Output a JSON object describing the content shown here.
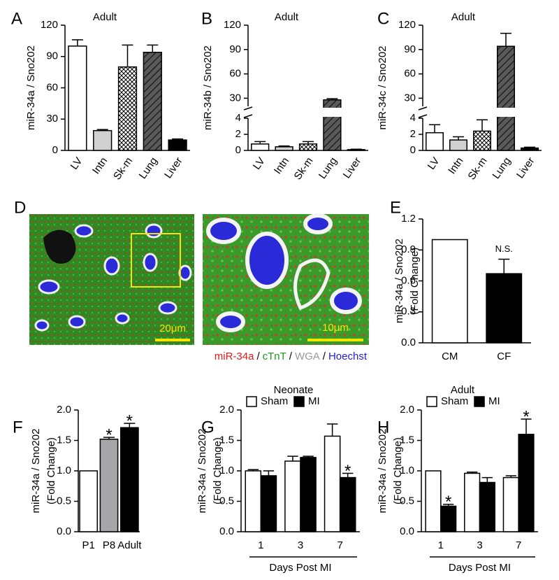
{
  "chart_data": [
    {
      "panel": "A",
      "type": "bar",
      "title": "Adult",
      "ylabel": "miR-34a / Sno202",
      "categories": [
        "LV",
        "Intn",
        "Sk-m",
        "Lung",
        "Liver"
      ],
      "values": [
        100,
        19,
        80,
        94,
        10
      ],
      "errors": [
        6,
        1,
        21,
        7,
        1
      ],
      "fills": [
        "white",
        "lightgray",
        "crosshatch",
        "diagonal",
        "black"
      ],
      "ylim": [
        0,
        120
      ],
      "yticks": [
        0,
        30,
        60,
        90,
        120
      ]
    },
    {
      "panel": "B",
      "type": "bar",
      "title": "Adult",
      "ylabel": "miR-34b / Sno202",
      "categories": [
        "LV",
        "Intn",
        "Sk-m",
        "Lung",
        "Liver"
      ],
      "values": [
        0.8,
        0.45,
        0.8,
        28,
        0.1
      ],
      "errors": [
        0.3,
        0.1,
        0.3,
        1.5,
        0.05
      ],
      "fills": [
        "white",
        "lightgray",
        "crosshatch",
        "diagonal",
        "black"
      ],
      "ylim": [
        0,
        120
      ],
      "axis_break": [
        4,
        20
      ],
      "yticks": [
        0,
        2,
        4,
        30,
        60,
        90,
        120
      ]
    },
    {
      "panel": "C",
      "type": "bar",
      "title": "Adult",
      "ylabel": "miR-34c / Sno202",
      "categories": [
        "LV",
        "Intn",
        "Sk-m",
        "Lung",
        "Liver"
      ],
      "values": [
        2.2,
        1.3,
        2.4,
        94,
        0.3
      ],
      "errors": [
        1.0,
        0.4,
        1.4,
        16,
        0.1
      ],
      "fills": [
        "white",
        "lightgray",
        "crosshatch",
        "diagonal",
        "black"
      ],
      "ylim": [
        0,
        120
      ],
      "axis_break": [
        4,
        20
      ],
      "yticks": [
        0,
        2,
        4,
        30,
        60,
        90,
        120
      ]
    },
    {
      "panel": "E",
      "type": "bar",
      "ylabel": [
        "miR-34a / Sno202",
        "(Fold Change)"
      ],
      "categories": [
        "CM",
        "CF"
      ],
      "values": [
        1.0,
        0.67
      ],
      "errors": [
        null,
        0.14
      ],
      "fills": [
        "white",
        "black"
      ],
      "annotations": [
        null,
        "N.S."
      ],
      "ylim": [
        0,
        1.2
      ],
      "yticks": [
        {
          "value": 0,
          "label": "0.0"
        },
        0.3,
        0.6,
        0.9,
        1.2
      ]
    },
    {
      "panel": "F",
      "type": "bar",
      "ylabel": [
        "miR-34a / Sno202",
        "(Fold Change)"
      ],
      "categories": [
        "P1",
        "P8",
        "Adult"
      ],
      "values": [
        1.0,
        1.52,
        1.71
      ],
      "errors": [
        null,
        0.03,
        0.07
      ],
      "fills": [
        "white",
        "gray",
        "black"
      ],
      "annotations": [
        null,
        "*",
        "*"
      ],
      "ylim": [
        0,
        2
      ],
      "yticks": [
        {
          "value": 0,
          "label": "0.0"
        },
        0.5,
        {
          "value": 1,
          "label": "1.0"
        },
        1.5,
        {
          "value": 2,
          "label": "2.0"
        }
      ]
    },
    {
      "panel": "G",
      "type": "bar",
      "title": "Neonate",
      "ylabel": [
        "miR-34a / Sno202",
        "(Fold Change)"
      ],
      "categories": [
        "1",
        "3",
        "7"
      ],
      "xlabel": "Days Post MI",
      "series": [
        {
          "name": "Sham",
          "color": "white",
          "values": [
            1.0,
            1.16,
            1.57
          ],
          "errors": [
            0.02,
            0.08,
            0.2
          ]
        },
        {
          "name": "MI",
          "color": "black",
          "values": [
            0.92,
            1.22,
            0.89
          ],
          "errors": [
            0.08,
            0.02,
            0.07
          ],
          "annotations": [
            null,
            null,
            "*"
          ]
        }
      ],
      "ylim": [
        0,
        2
      ],
      "yticks": [
        {
          "value": 0,
          "label": "0.0"
        },
        0.5,
        {
          "value": 1,
          "label": "1.0"
        },
        1.5,
        {
          "value": 2,
          "label": "2.0"
        }
      ]
    },
    {
      "panel": "H",
      "type": "bar",
      "title": "Adult",
      "ylabel": [
        "miR-34a / Sno202",
        "(Fold Change)"
      ],
      "categories": [
        "1",
        "3",
        "7"
      ],
      "xlabel": "Days Post MI",
      "series": [
        {
          "name": "Sham",
          "color": "white",
          "values": [
            1.0,
            0.96,
            0.89
          ],
          "errors": [
            null,
            0.02,
            0.03
          ]
        },
        {
          "name": "MI",
          "color": "black",
          "values": [
            0.42,
            0.81,
            1.6
          ],
          "errors": [
            0.03,
            0.08,
            0.25
          ],
          "annotations": [
            "*",
            null,
            "*"
          ]
        }
      ],
      "ylim": [
        0,
        2
      ],
      "yticks": [
        {
          "value": 0,
          "label": "0.0"
        },
        0.5,
        {
          "value": 1,
          "label": "1.0"
        },
        1.5,
        {
          "value": 2,
          "label": "2.0"
        }
      ]
    }
  ],
  "micrograph": {
    "panel": "D",
    "scale_bars": [
      "20μm",
      "10μm"
    ],
    "stains": [
      {
        "name": "miR-34a",
        "color": "#e3191c"
      },
      {
        "name": "cTnT",
        "color": "#1c9a1c"
      },
      {
        "name": "WGA",
        "color": "#999999"
      },
      {
        "name": "Hoechst",
        "color": "#1f1fd8"
      }
    ],
    "separator": "/"
  }
}
